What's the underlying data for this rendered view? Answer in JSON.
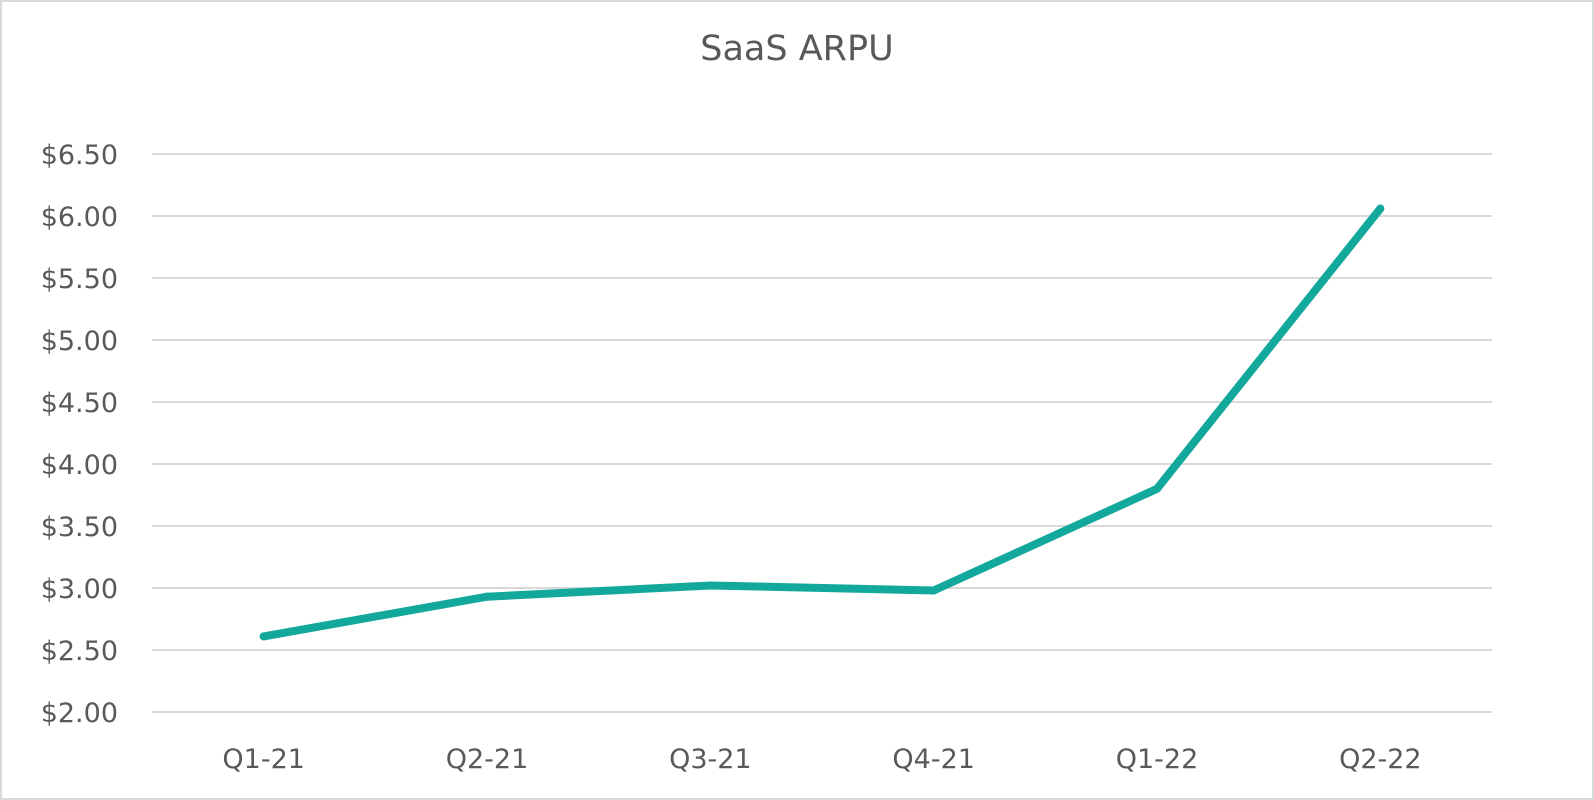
{
  "chart_data": {
    "type": "line",
    "title": "SaaS ARPU",
    "xlabel": "",
    "ylabel": "",
    "categories": [
      "Q1-21",
      "Q2-21",
      "Q3-21",
      "Q4-21",
      "Q1-22",
      "Q2-22"
    ],
    "series": [
      {
        "values": [
          2.61,
          2.93,
          3.02,
          2.98,
          3.8,
          6.06
        ],
        "color": "#12a89b"
      }
    ],
    "ylim": [
      2.0,
      6.5
    ],
    "y_ticks": [
      "$2.00",
      "$2.50",
      "$3.00",
      "$3.50",
      "$4.00",
      "$4.50",
      "$5.00",
      "$5.50",
      "$6.00",
      "$6.50"
    ],
    "y_tick_values": [
      2.0,
      2.5,
      3.0,
      3.5,
      4.0,
      4.5,
      5.0,
      5.5,
      6.0,
      6.5
    ],
    "grid": true,
    "legend": "none"
  },
  "colors": {
    "gridline": "#d9d9d9",
    "text": "#595959",
    "border": "#d9d9d9"
  }
}
